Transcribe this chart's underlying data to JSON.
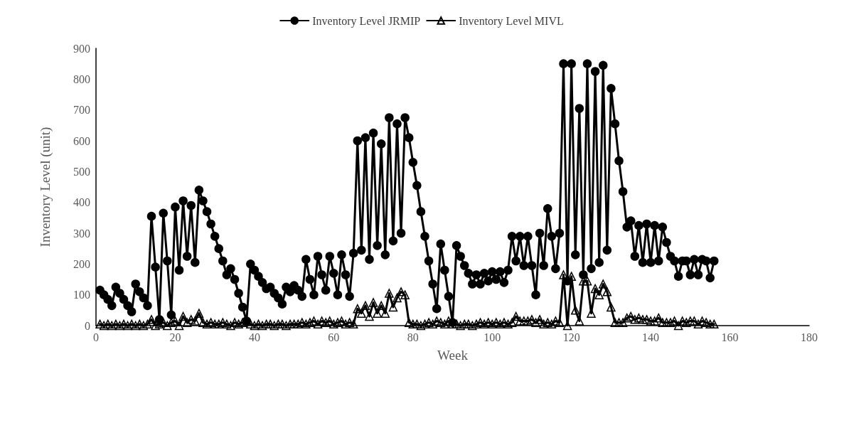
{
  "chart_data": {
    "type": "line",
    "xlabel": "Week",
    "ylabel": "Inventory Level (unit)",
    "xlim": [
      0,
      180
    ],
    "xticks": [
      0,
      20,
      40,
      60,
      80,
      100,
      120,
      140,
      160,
      180
    ],
    "ylim": [
      0,
      900
    ],
    "yticks": [
      0,
      100,
      200,
      300,
      400,
      500,
      600,
      700,
      800,
      900
    ],
    "grid": false,
    "legend": "top",
    "line_style": "solid",
    "x": [
      1,
      2,
      3,
      4,
      5,
      6,
      7,
      8,
      9,
      10,
      11,
      12,
      13,
      14,
      15,
      16,
      17,
      18,
      19,
      20,
      21,
      22,
      23,
      24,
      25,
      26,
      27,
      28,
      29,
      30,
      31,
      32,
      33,
      34,
      35,
      36,
      37,
      38,
      39,
      40,
      41,
      42,
      43,
      44,
      45,
      46,
      47,
      48,
      49,
      50,
      51,
      52,
      53,
      54,
      55,
      56,
      57,
      58,
      59,
      60,
      61,
      62,
      63,
      64,
      65,
      66,
      67,
      68,
      69,
      70,
      71,
      72,
      73,
      74,
      75,
      76,
      77,
      78,
      79,
      80,
      81,
      82,
      83,
      84,
      85,
      86,
      87,
      88,
      89,
      90,
      91,
      92,
      93,
      94,
      95,
      96,
      97,
      98,
      99,
      100,
      101,
      102,
      103,
      104,
      105,
      106,
      107,
      108,
      109,
      110,
      111,
      112,
      113,
      114,
      115,
      116,
      117,
      118,
      119,
      120,
      121,
      122,
      123,
      124,
      125,
      126,
      127,
      128,
      129,
      130,
      131,
      132,
      133,
      134,
      135,
      136,
      137,
      138,
      139,
      140,
      141,
      142,
      143,
      144,
      145,
      146,
      147,
      148,
      149,
      150,
      151,
      152,
      153,
      154,
      155,
      156
    ],
    "series": [
      {
        "name": "Inventory Level JRMIP",
        "color": "#000000",
        "marker": "circle",
        "values": [
          115,
          100,
          85,
          65,
          125,
          105,
          85,
          65,
          45,
          135,
          110,
          90,
          65,
          355,
          190,
          20,
          365,
          210,
          35,
          385,
          180,
          405,
          225,
          390,
          205,
          440,
          405,
          370,
          330,
          290,
          250,
          210,
          165,
          185,
          150,
          105,
          60,
          15,
          200,
          180,
          160,
          140,
          120,
          125,
          105,
          90,
          70,
          125,
          110,
          130,
          115,
          95,
          215,
          150,
          100,
          225,
          165,
          115,
          225,
          170,
          100,
          230,
          165,
          95,
          235,
          600,
          245,
          610,
          215,
          625,
          260,
          590,
          230,
          675,
          275,
          655,
          300,
          675,
          610,
          530,
          455,
          370,
          290,
          210,
          135,
          55,
          265,
          180,
          95,
          10,
          260,
          225,
          195,
          170,
          135,
          165,
          135,
          170,
          145,
          175,
          150,
          175,
          140,
          180,
          290,
          210,
          290,
          195,
          290,
          195,
          100,
          300,
          195,
          380,
          290,
          185,
          300,
          850,
          145,
          850,
          230,
          705,
          165,
          850,
          185,
          825,
          205,
          845,
          245,
          770,
          655,
          535,
          435,
          320,
          340,
          225,
          325,
          205,
          330,
          205,
          325,
          210,
          320,
          270,
          225,
          210,
          160,
          210,
          210,
          165,
          215,
          165,
          215,
          210,
          155,
          210
        ]
      },
      {
        "name": "Inventory Level MIVL",
        "color": "#000000",
        "marker": "triangle",
        "values": [
          5,
          0,
          5,
          0,
          5,
          0,
          5,
          0,
          5,
          0,
          5,
          0,
          5,
          20,
          0,
          5,
          10,
          0,
          10,
          15,
          0,
          30,
          10,
          20,
          15,
          40,
          10,
          5,
          10,
          5,
          5,
          10,
          5,
          0,
          10,
          5,
          10,
          15,
          5,
          0,
          5,
          0,
          5,
          5,
          0,
          5,
          5,
          0,
          5,
          5,
          5,
          10,
          5,
          10,
          15,
          5,
          15,
          10,
          15,
          5,
          10,
          15,
          5,
          10,
          5,
          55,
          40,
          65,
          30,
          75,
          40,
          65,
          40,
          105,
          60,
          90,
          110,
          100,
          10,
          5,
          5,
          0,
          5,
          10,
          5,
          15,
          10,
          5,
          15,
          5,
          5,
          0,
          5,
          5,
          0,
          5,
          10,
          5,
          10,
          5,
          10,
          5,
          10,
          5,
          10,
          30,
          15,
          15,
          15,
          20,
          10,
          20,
          5,
          10,
          5,
          15,
          10,
          165,
          0,
          160,
          50,
          15,
          145,
          145,
          40,
          120,
          100,
          135,
          110,
          60,
          10,
          10,
          10,
          25,
          30,
          20,
          25,
          20,
          20,
          15,
          15,
          25,
          10,
          10,
          10,
          15,
          0,
          15,
          10,
          15,
          15,
          5,
          15,
          10,
          5,
          5
        ]
      }
    ]
  }
}
